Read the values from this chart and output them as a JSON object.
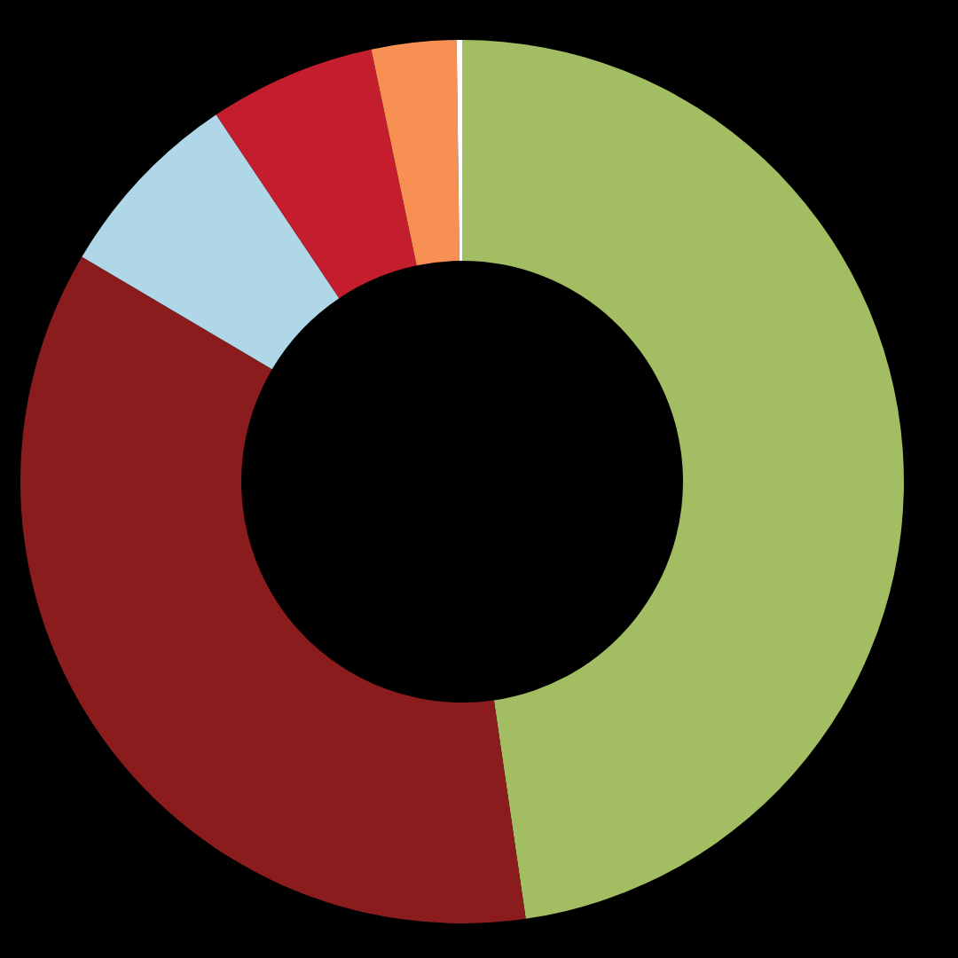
{
  "chart_data": {
    "type": "donut",
    "categories": [
      null,
      null,
      null,
      null,
      null,
      null
    ],
    "values": [
      47.7,
      35.8,
      7.1,
      6.1,
      3.1,
      0.2
    ],
    "colors": [
      "#a3be62",
      "#8b1c1e",
      "#b0d7e8",
      "#c41e2e",
      "#f79052",
      "#ffffff"
    ]
  }
}
